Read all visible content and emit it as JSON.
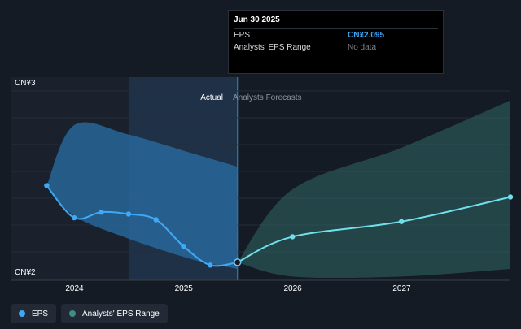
{
  "tooltip": {
    "title": "Jun 30 2025",
    "rows": [
      {
        "name": "EPS",
        "value": "CN¥2.095"
      },
      {
        "name": "Analysts' EPS Range",
        "value": "No data"
      }
    ]
  },
  "region_labels": {
    "actual": "Actual",
    "forecast": "Analysts Forecasts"
  },
  "legend": [
    {
      "label": "EPS",
      "color": "#3fa9f5"
    },
    {
      "label": "Analysts' EPS Range",
      "color": "#3d8f86"
    }
  ],
  "chart_data": {
    "type": "line",
    "x_tick_labels": [
      "2024",
      "2025",
      "2026",
      "2027"
    ],
    "y_tick_labels": [
      "CN¥3",
      "CN¥2"
    ],
    "ylim": [
      2.0,
      3.0
    ],
    "xlim": [
      "2023-06-01",
      "2027-12-31"
    ],
    "divider_date": "2025-06-30",
    "highlight_from": "2024-06-30",
    "series": [
      {
        "name": "EPS",
        "role": "actual",
        "color": "#3fa9f5",
        "points": [
          [
            "2023-09-30",
            2.5
          ],
          [
            "2023-12-31",
            2.33
          ],
          [
            "2024-03-31",
            2.36
          ],
          [
            "2024-06-30",
            2.35
          ],
          [
            "2024-09-30",
            2.32
          ],
          [
            "2024-12-31",
            2.18
          ],
          [
            "2025-03-31",
            2.08
          ],
          [
            "2025-06-30",
            2.095
          ]
        ]
      },
      {
        "name": "EPS",
        "role": "forecast",
        "color": "#6fe0ec",
        "points": [
          [
            "2025-06-30",
            2.095
          ],
          [
            "2025-12-31",
            2.23
          ],
          [
            "2026-12-31",
            2.31
          ],
          [
            "2027-12-31",
            2.44
          ]
        ]
      }
    ],
    "bands": [
      {
        "role": "actual-range",
        "color": "#2a6fa5",
        "upper": [
          [
            "2023-09-30",
            2.5
          ],
          [
            "2023-12-31",
            2.82
          ],
          [
            "2024-06-30",
            2.77
          ],
          [
            "2025-01-31",
            2.67
          ],
          [
            "2025-06-30",
            2.6
          ]
        ],
        "lower": [
          [
            "2023-09-30",
            2.5
          ],
          [
            "2023-12-31",
            2.34
          ],
          [
            "2024-06-30",
            2.22
          ],
          [
            "2025-01-31",
            2.11
          ],
          [
            "2025-06-30",
            2.06
          ]
        ]
      },
      {
        "role": "forecast-range",
        "color": "#2c5c5c",
        "upper": [
          [
            "2025-06-30",
            2.095
          ],
          [
            "2025-12-31",
            2.48
          ],
          [
            "2026-12-31",
            2.7
          ],
          [
            "2027-12-31",
            2.95
          ]
        ],
        "lower": [
          [
            "2025-06-30",
            2.095
          ],
          [
            "2025-12-31",
            2.02
          ],
          [
            "2026-12-31",
            2.02
          ],
          [
            "2027-12-31",
            2.06
          ]
        ]
      }
    ]
  }
}
